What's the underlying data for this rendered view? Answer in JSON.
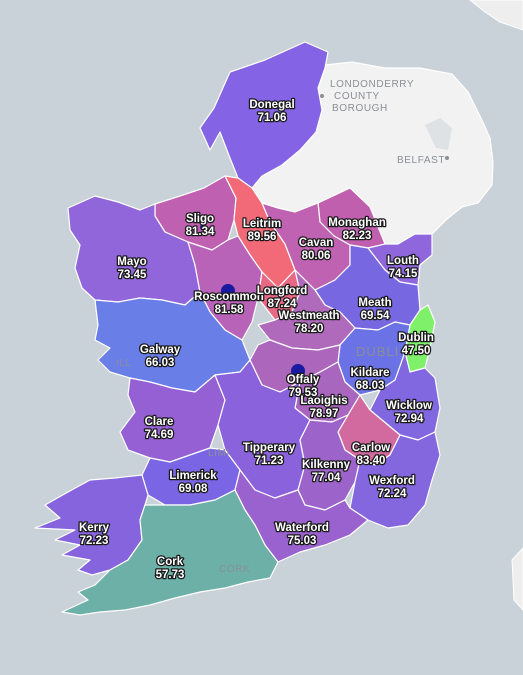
{
  "colors": {
    "sea": "#c9d2d8",
    "land_other": "#f2f2f2",
    "water_blue": "#1a1aa0"
  },
  "basemap_labels": {
    "londonderry": [
      "LONDONDERRY",
      "COUNTY",
      "BOROUGH"
    ],
    "belfast": "BELFAST",
    "dublin": "DUBLI",
    "limerick": "LIMI",
    "cork": "CORK",
    "galway": "ILL"
  },
  "counties": [
    {
      "id": "donegal",
      "name": "Donegal",
      "value": "71.06",
      "color": "#8464e4"
    },
    {
      "id": "sligo",
      "name": "Sligo",
      "value": "81.34",
      "color": "#c060b0"
    },
    {
      "id": "leitrim",
      "name": "Leitrim",
      "value": "89.56",
      "color": "#f26a78"
    },
    {
      "id": "monaghan",
      "name": "Monaghan",
      "value": "82.23",
      "color": "#c05fae"
    },
    {
      "id": "cavan",
      "name": "Cavan",
      "value": "80.06",
      "color": "#c062b2"
    },
    {
      "id": "mayo",
      "name": "Mayo",
      "value": "73.45",
      "color": "#9166da"
    },
    {
      "id": "louth",
      "name": "Louth",
      "value": "74.15",
      "color": "#8f66dc"
    },
    {
      "id": "roscommon",
      "name": "Roscommon",
      "value": "81.58",
      "color": "#b862b8"
    },
    {
      "id": "longford",
      "name": "Longford",
      "value": "87.24",
      "color": "#e96884"
    },
    {
      "id": "meath",
      "name": "Meath",
      "value": "69.54",
      "color": "#7768e2"
    },
    {
      "id": "westmeath",
      "name": "Westmeath",
      "value": "78.20",
      "color": "#b06abc"
    },
    {
      "id": "dublin",
      "name": "Dublin",
      "value": "47.50",
      "color": "#7ef06a"
    },
    {
      "id": "galway",
      "name": "Galway",
      "value": "66.03",
      "color": "#6a7ee8"
    },
    {
      "id": "kildare",
      "name": "Kildare",
      "value": "68.03",
      "color": "#6a72e6"
    },
    {
      "id": "offaly",
      "name": "Offaly",
      "value": "79.53",
      "color": "#ac66bc"
    },
    {
      "id": "laois",
      "name": "Laoighis",
      "value": "78.97",
      "color": "#a866bf"
    },
    {
      "id": "wicklow",
      "name": "Wicklow",
      "value": "72.94",
      "color": "#8268e0"
    },
    {
      "id": "clare",
      "name": "Clare",
      "value": "74.69",
      "color": "#9460d4"
    },
    {
      "id": "tipperary",
      "name": "Tipperary",
      "value": "71.23",
      "color": "#8a62dc"
    },
    {
      "id": "carlow",
      "name": "Carlow",
      "value": "83.40",
      "color": "#d26aa0"
    },
    {
      "id": "kilkenny",
      "name": "Kilkenny",
      "value": "77.04",
      "color": "#9c64ca"
    },
    {
      "id": "limerick",
      "name": "Limerick",
      "value": "69.08",
      "color": "#7a66e4"
    },
    {
      "id": "wexford",
      "name": "Wexford",
      "value": "72.24",
      "color": "#8466de"
    },
    {
      "id": "kerry",
      "name": "Kerry",
      "value": "72.23",
      "color": "#8664de"
    },
    {
      "id": "waterford",
      "name": "Waterford",
      "value": "75.03",
      "color": "#9a62ce"
    },
    {
      "id": "cork",
      "name": "Cork",
      "value": "57.73",
      "color": "#6cb0a8"
    }
  ]
}
